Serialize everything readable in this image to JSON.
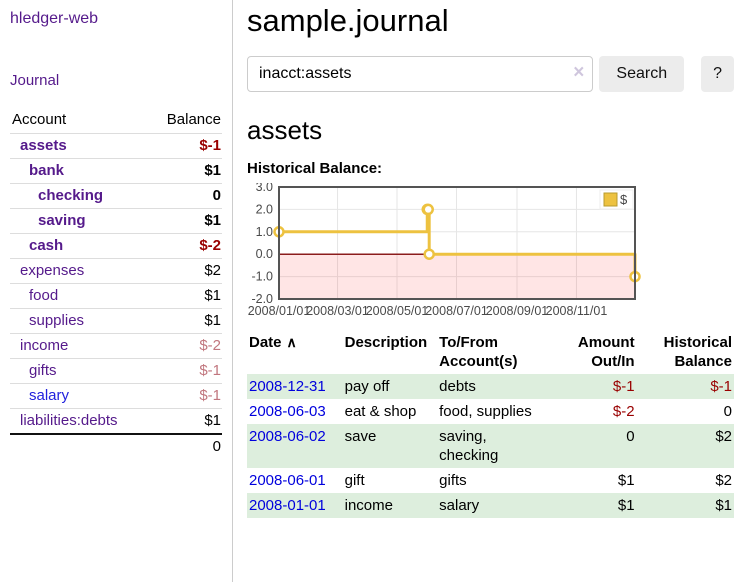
{
  "colors": {
    "link_purple": "#551a8b",
    "link_blue": "#2222dd",
    "neg_dark": "#990000",
    "neg_soft": "#c1767e",
    "row_green": "#ddeedd",
    "series_yellow": "#edc240",
    "neg_region": "rgba(255,0,0,0.10)",
    "zero_line": "#8b1c1c",
    "chart_border": "#545454"
  },
  "sidebar": {
    "brand": "hledger-web",
    "nav_journal": "Journal",
    "accounts_table": {
      "headers": {
        "account": "Account",
        "balance": "Balance"
      },
      "rows": [
        {
          "name": "assets",
          "balance": "$-1",
          "indent": 1,
          "bold": true,
          "balance_color": "neg_dark"
        },
        {
          "name": "bank",
          "balance": "$1",
          "indent": 2,
          "bold": true
        },
        {
          "name": "checking",
          "balance": "0",
          "indent": 3,
          "bold": true
        },
        {
          "name": "saving",
          "balance": "$1",
          "indent": 3,
          "bold": true
        },
        {
          "name": "cash",
          "balance": "$-2",
          "indent": 2,
          "bold": true,
          "balance_color": "neg_dark"
        },
        {
          "name": "expenses",
          "balance": "$2",
          "indent": 1
        },
        {
          "name": "food",
          "balance": "$1",
          "indent": 2
        },
        {
          "name": "supplies",
          "balance": "$1",
          "indent": 2
        },
        {
          "name": "income",
          "balance": "$-2",
          "indent": 1,
          "balance_color": "neg_soft"
        },
        {
          "name": "gifts",
          "balance": "$-1",
          "indent": 2,
          "balance_color": "neg_soft"
        },
        {
          "name": "salary",
          "balance": "$-1",
          "indent": 2,
          "balance_color": "neg_soft",
          "link_color": "blue"
        },
        {
          "name": "liabilities:debts",
          "balance": "$1",
          "indent": 1
        }
      ],
      "total": "0"
    }
  },
  "header": {
    "title": "sample.journal"
  },
  "search": {
    "value": "inacct:assets",
    "clear_icon": "×",
    "submit_label": "Search",
    "help_label": "?"
  },
  "account_view": {
    "title": "assets",
    "chart_heading": "Historical Balance:"
  },
  "chart_data": {
    "type": "line",
    "step": true,
    "title": "Historical Balance",
    "series": [
      {
        "name": "$",
        "points": [
          [
            "2008-01-01",
            1
          ],
          [
            "2008-06-01",
            2
          ],
          [
            "2008-06-02",
            2
          ],
          [
            "2008-06-03",
            0
          ],
          [
            "2008-12-31",
            -1
          ]
        ]
      }
    ],
    "xlim": [
      "2008-01-01",
      "2008-12-31"
    ],
    "ylim": [
      -2,
      3
    ],
    "xticks": [
      {
        "t": "2008-01-01",
        "label": "2008/01/01"
      },
      {
        "t": "2008-03-01",
        "label": "2008/03/01"
      },
      {
        "t": "2008-05-01",
        "label": "2008/05/01"
      },
      {
        "t": "2008-07-01",
        "label": "2008/07/01"
      },
      {
        "t": "2008-09-01",
        "label": "2008/09/01"
      },
      {
        "t": "2008-11-01",
        "label": "2008/11/01"
      }
    ],
    "yticks": [
      {
        "v": 3,
        "label": "3.0"
      },
      {
        "v": 2,
        "label": "2.0"
      },
      {
        "v": 1,
        "label": "1.0"
      },
      {
        "v": 0,
        "label": "0.0"
      },
      {
        "v": -1,
        "label": "-1.0"
      },
      {
        "v": -2,
        "label": "-2.0"
      }
    ],
    "legend": {
      "label": "$",
      "position": "top-right"
    },
    "grid": true,
    "negative_region_shaded": true
  },
  "transactions": {
    "headers": [
      {
        "line1": "Date",
        "sort_icon": "∧",
        "align": "left"
      },
      {
        "line1": "Description",
        "align": "left"
      },
      {
        "line1": "To/From",
        "line2": "Account(s)",
        "align": "left"
      },
      {
        "line1": "Amount",
        "line2": "Out/In",
        "align": "right"
      },
      {
        "line1": "Historical",
        "line2": "Balance",
        "align": "right"
      }
    ],
    "rows": [
      {
        "date": "2008-12-31",
        "description": "pay off",
        "to_from": "debts",
        "amount": "$-1",
        "amount_neg": true,
        "balance": "$-1",
        "balance_neg": true
      },
      {
        "date": "2008-06-03",
        "description": "eat & shop",
        "to_from": "food, supplies",
        "amount": "$-2",
        "amount_neg": true,
        "balance": "0"
      },
      {
        "date": "2008-06-02",
        "description": "save",
        "to_from": "saving,\nchecking",
        "amount": "0",
        "balance": "$2"
      },
      {
        "date": "2008-06-01",
        "description": "gift",
        "to_from": "gifts",
        "amount": "$1",
        "balance": "$2"
      },
      {
        "date": "2008-01-01",
        "description": "income",
        "to_from": "salary",
        "amount": "$1",
        "balance": "$1"
      }
    ]
  }
}
